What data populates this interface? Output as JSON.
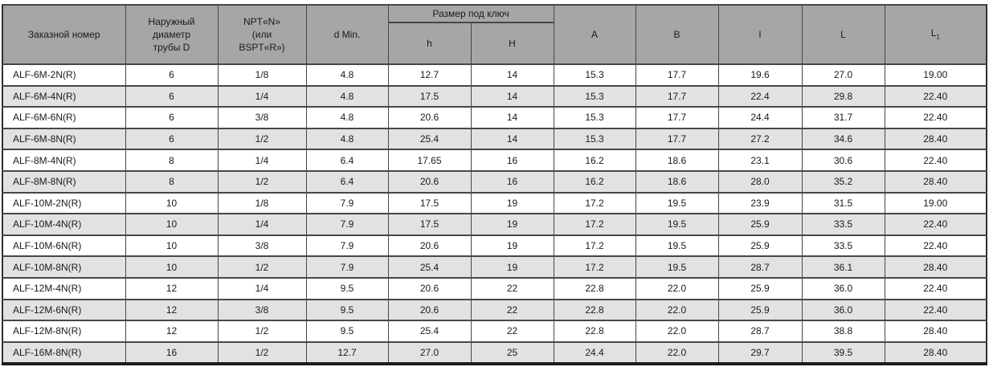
{
  "colors": {
    "header_bg": "#a6a6a6",
    "row_alt_bg": "#e2e2e2",
    "grid_border": "#474747",
    "outer_border": "#2e2e2e"
  },
  "table": {
    "headers": {
      "order_number": "Заказной номер",
      "outer_diameter": "Наружный\nдиаметр\nтрубы D",
      "thread": "NPT«N»\n(или\nBSPT«R»)",
      "d_min": "d Min.",
      "wrench_size_group": "Размер под ключ",
      "h": "h",
      "H": "H",
      "A": "A",
      "B": "B",
      "l": "l",
      "L": "L",
      "L1_base": "L",
      "L1_sub": "1"
    },
    "rows": [
      [
        "ALF-6M-2N(R)",
        "6",
        "1/8",
        "4.8",
        "12.7",
        "14",
        "15.3",
        "17.7",
        "19.6",
        "27.0",
        "19.00"
      ],
      [
        "ALF-6M-4N(R)",
        "6",
        "1/4",
        "4.8",
        "17.5",
        "14",
        "15.3",
        "17.7",
        "22.4",
        "29.8",
        "22.40"
      ],
      [
        "ALF-6M-6N(R)",
        "6",
        "3/8",
        "4.8",
        "20.6",
        "14",
        "15.3",
        "17.7",
        "24.4",
        "31.7",
        "22.40"
      ],
      [
        "ALF-6M-8N(R)",
        "6",
        "1/2",
        "4.8",
        "25.4",
        "14",
        "15.3",
        "17.7",
        "27.2",
        "34.6",
        "28.40"
      ],
      [
        "ALF-8M-4N(R)",
        "8",
        "1/4",
        "6.4",
        "17.65",
        "16",
        "16.2",
        "18.6",
        "23.1",
        "30.6",
        "22.40"
      ],
      [
        "ALF-8M-8N(R)",
        "8",
        "1/2",
        "6.4",
        "20.6",
        "16",
        "16.2",
        "18.6",
        "28.0",
        "35.2",
        "28.40"
      ],
      [
        "ALF-10M-2N(R)",
        "10",
        "1/8",
        "7.9",
        "17.5",
        "19",
        "17.2",
        "19.5",
        "23.9",
        "31.5",
        "19.00"
      ],
      [
        "ALF-10M-4N(R)",
        "10",
        "1/4",
        "7.9",
        "17.5",
        "19",
        "17.2",
        "19.5",
        "25.9",
        "33.5",
        "22.40"
      ],
      [
        "ALF-10M-6N(R)",
        "10",
        "3/8",
        "7.9",
        "20.6",
        "19",
        "17.2",
        "19.5",
        "25.9",
        "33.5",
        "22.40"
      ],
      [
        "ALF-10M-8N(R)",
        "10",
        "1/2",
        "7.9",
        "25.4",
        "19",
        "17.2",
        "19.5",
        "28.7",
        "36.1",
        "28.40"
      ],
      [
        "ALF-12M-4N(R)",
        "12",
        "1/4",
        "9.5",
        "20.6",
        "22",
        "22.8",
        "22.0",
        "25.9",
        "36.0",
        "22.40"
      ],
      [
        "ALF-12M-6N(R)",
        "12",
        "3/8",
        "9.5",
        "20.6",
        "22",
        "22.8",
        "22.0",
        "25.9",
        "36.0",
        "22.40"
      ],
      [
        "ALF-12M-8N(R)",
        "12",
        "1/2",
        "9.5",
        "25.4",
        "22",
        "22.8",
        "22.0",
        "28.7",
        "38.8",
        "28.40"
      ],
      [
        "ALF-16M-8N(R)",
        "16",
        "1/2",
        "12.7",
        "27.0",
        "25",
        "24.4",
        "22.0",
        "29.7",
        "39.5",
        "28.40"
      ]
    ]
  }
}
